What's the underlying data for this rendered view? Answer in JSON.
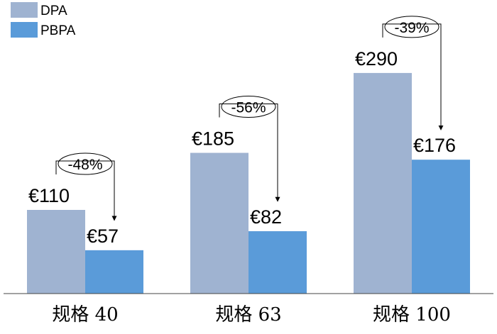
{
  "chart_data": {
    "type": "bar",
    "categories": [
      "规格 40",
      "规格 63",
      "规格 100"
    ],
    "series": [
      {
        "name": "DPA",
        "values": [
          110,
          185,
          290
        ],
        "labels": [
          "€110",
          "€185",
          "€290"
        ],
        "color": "#9fb3d1"
      },
      {
        "name": "PBPA",
        "values": [
          57,
          82,
          176
        ],
        "labels": [
          "€57",
          "€82",
          "€176"
        ],
        "color": "#5a9bd9"
      }
    ],
    "annotations": [
      "-48%",
      "-56%",
      "-39%"
    ],
    "ylim": [
      0,
      330
    ],
    "grid": false,
    "legend": "top-left"
  }
}
